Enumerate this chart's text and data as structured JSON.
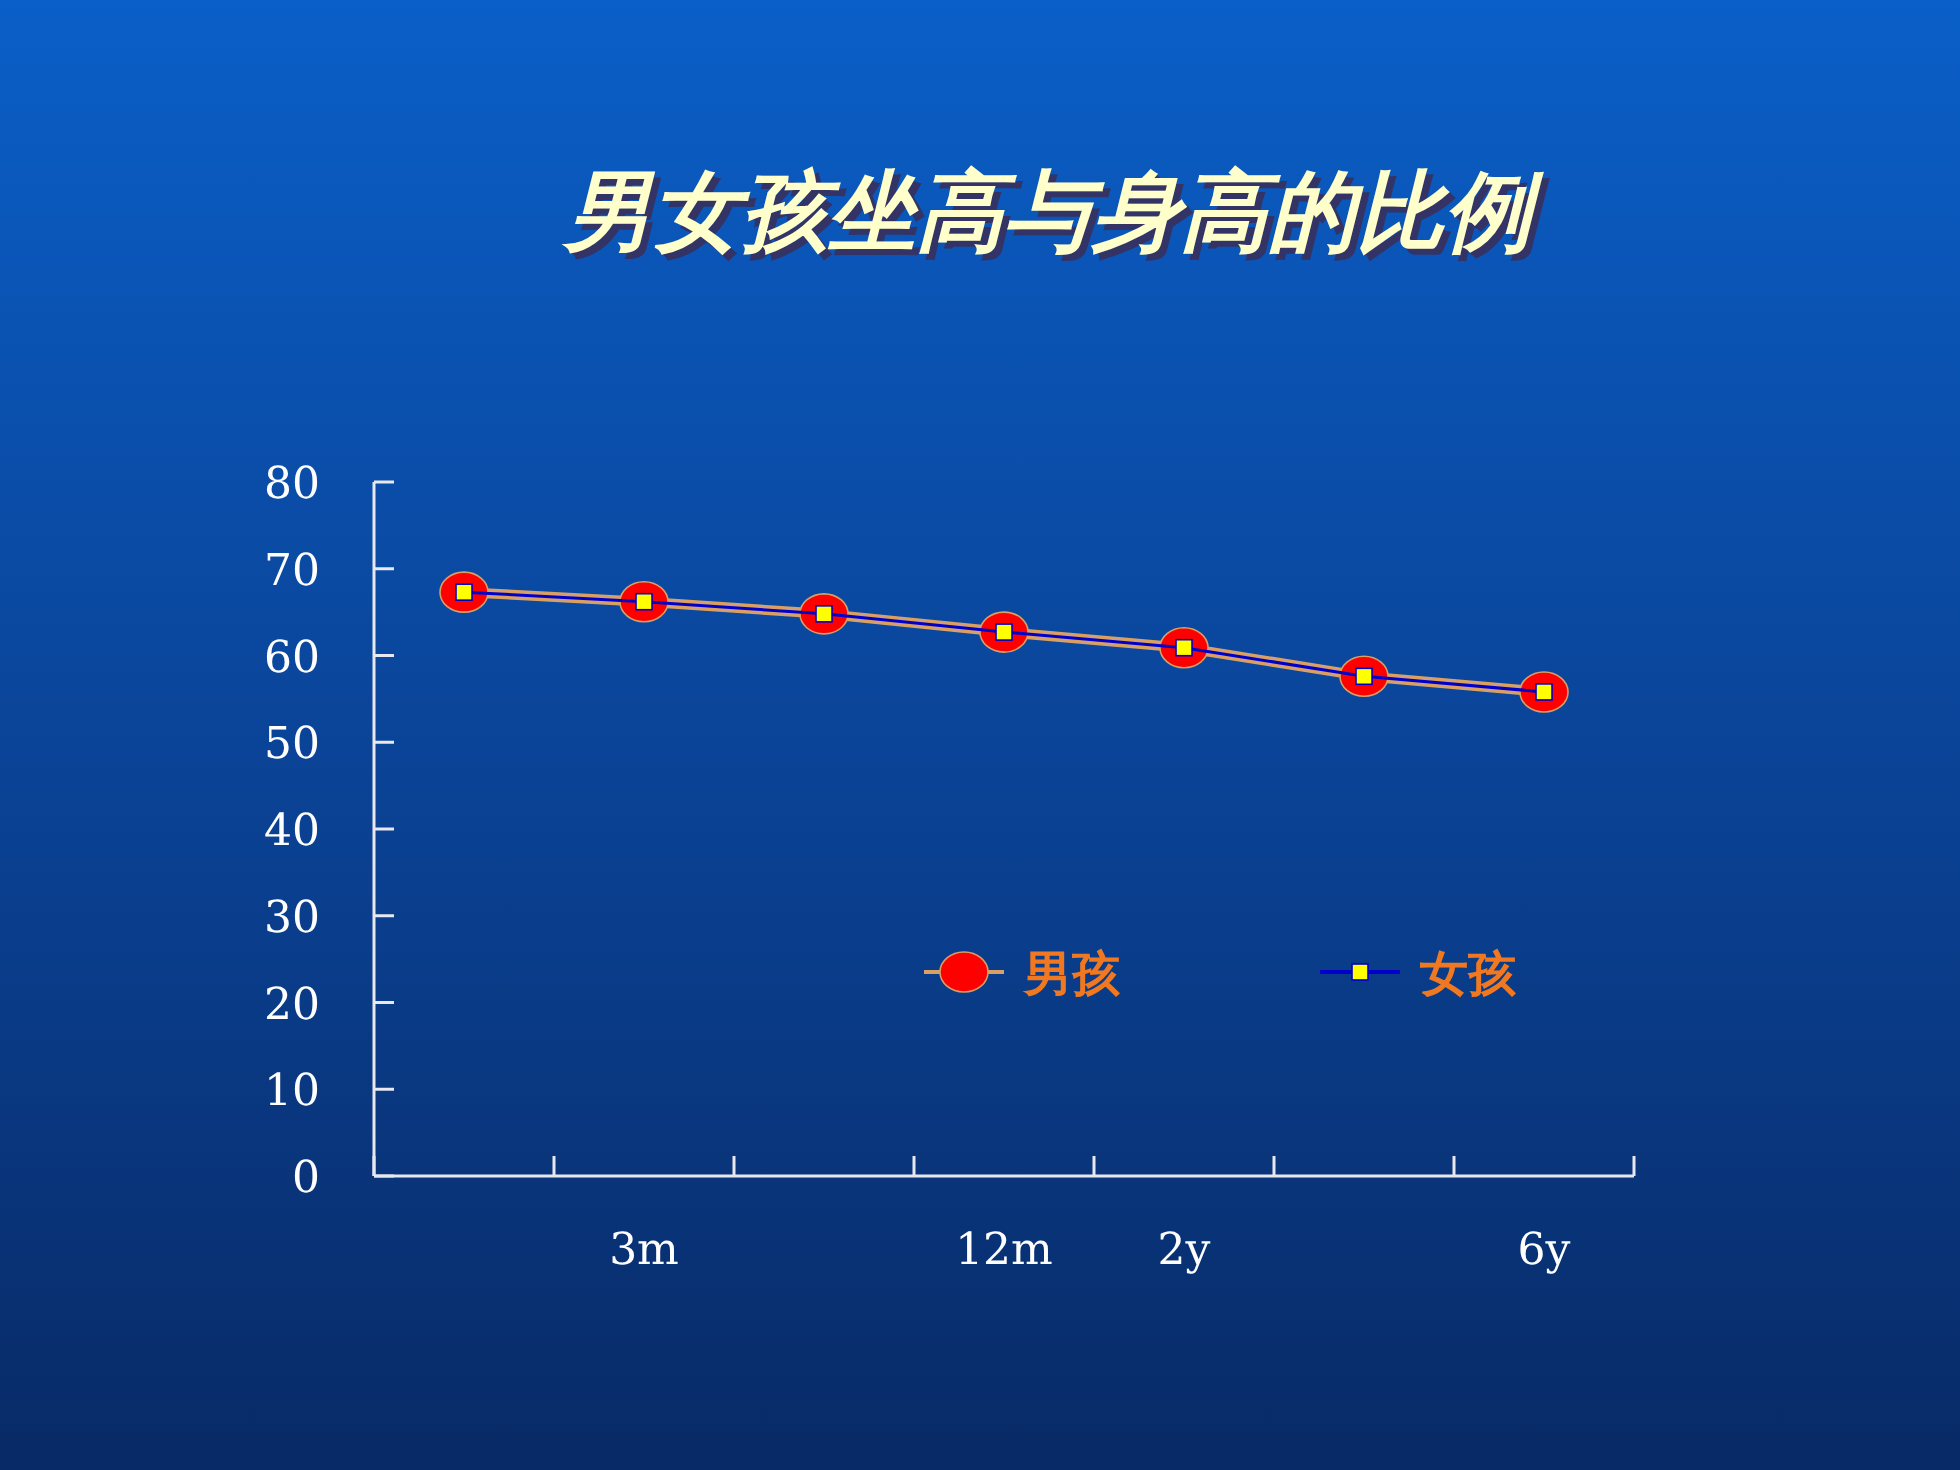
{
  "chart_data": {
    "type": "line",
    "title": "男女孩坐高与身高的比例",
    "categories": [
      null,
      "3m",
      null,
      "12m",
      "2y",
      null,
      "6y"
    ],
    "series": [
      {
        "name": "男孩",
        "color": "#d9a066",
        "marker": "circle",
        "values": [
          67.3,
          66.2,
          64.8,
          62.7,
          60.9,
          57.6,
          55.8
        ]
      },
      {
        "name": "女孩",
        "color": "#0000cc",
        "marker": "square",
        "values": [
          67.3,
          66.2,
          64.8,
          62.7,
          60.9,
          57.6,
          55.8
        ]
      }
    ],
    "ylim": [
      0,
      80
    ],
    "yticks": [
      0,
      10,
      20,
      30,
      40,
      50,
      60,
      70,
      80
    ],
    "legend": "right"
  }
}
